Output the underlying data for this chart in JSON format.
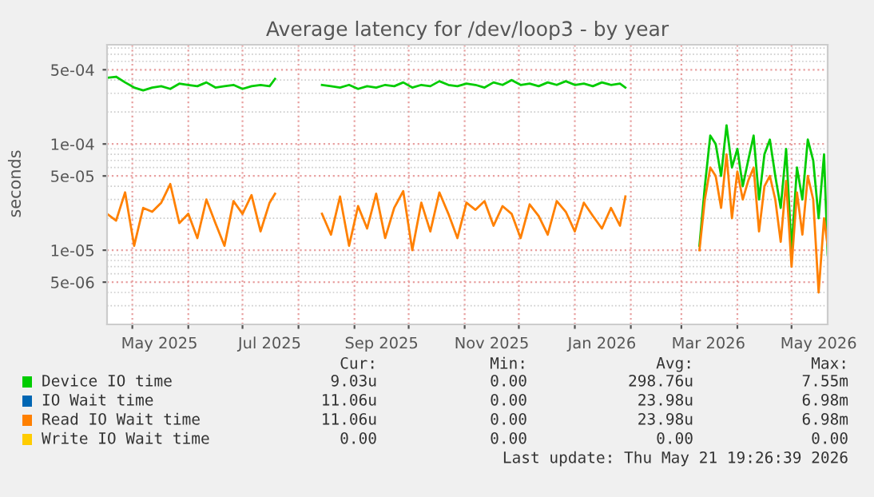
{
  "chart_data": {
    "type": "line",
    "title": "Average latency for /dev/loop3 - by year",
    "ylabel": "seconds",
    "log": "y",
    "grid": true,
    "legend": "bottom",
    "marker": "none",
    "line_style": "solid",
    "xlim": [
      "2025-04-17",
      "2026-05-21"
    ],
    "xticks": [
      {
        "value": "2025-05-01",
        "label": null
      },
      {
        "value": "2025-05-16",
        "label": "May 2025"
      },
      {
        "value": "2025-06-01",
        "label": null
      },
      {
        "value": "2025-07-01",
        "label": null
      },
      {
        "value": "2025-07-16",
        "label": "Jul 2025"
      },
      {
        "value": "2025-08-01",
        "label": null
      },
      {
        "value": "2025-09-01",
        "label": null
      },
      {
        "value": "2025-09-16",
        "label": "Sep 2025"
      },
      {
        "value": "2025-10-01",
        "label": null
      },
      {
        "value": "2025-11-01",
        "label": null
      },
      {
        "value": "2025-11-16",
        "label": "Nov 2025"
      },
      {
        "value": "2025-12-01",
        "label": null
      },
      {
        "value": "2026-01-01",
        "label": null
      },
      {
        "value": "2026-01-16",
        "label": "Jan 2026"
      },
      {
        "value": "2026-02-01",
        "label": null
      },
      {
        "value": "2026-03-01",
        "label": null
      },
      {
        "value": "2026-03-16",
        "label": "Mar 2026"
      },
      {
        "value": "2026-04-01",
        "label": null
      },
      {
        "value": "2026-05-01",
        "label": null
      },
      {
        "value": "2026-05-16",
        "label": "May 2026"
      }
    ],
    "ylim": [
      2e-06,
      0.00086
    ],
    "yticks": [
      {
        "value": 5e-06,
        "label": "5e-06"
      },
      {
        "value": 1e-05,
        "label": "1e-05"
      },
      {
        "value": 5e-05,
        "label": "5e-05"
      },
      {
        "value": 0.0001,
        "label": "1e-04"
      },
      {
        "value": 0.0005,
        "label": "5e-04"
      }
    ],
    "x": [
      "2025-04-17",
      "2025-04-22",
      "2025-04-27",
      "2025-05-02",
      "2025-05-07",
      "2025-05-12",
      "2025-05-17",
      "2025-05-22",
      "2025-05-27",
      "2025-06-01",
      "2025-06-06",
      "2025-06-11",
      "2025-06-16",
      "2025-06-21",
      "2025-06-26",
      "2025-07-01",
      "2025-07-06",
      "2025-07-11",
      "2025-07-16",
      "2025-07-19",
      "2025-08-01",
      "2025-08-14",
      "2025-08-19",
      "2025-08-24",
      "2025-08-29",
      "2025-09-03",
      "2025-09-08",
      "2025-09-13",
      "2025-09-18",
      "2025-09-23",
      "2025-09-28",
      "2025-10-03",
      "2025-10-08",
      "2025-10-13",
      "2025-10-18",
      "2025-10-23",
      "2025-10-28",
      "2025-11-02",
      "2025-11-07",
      "2025-11-12",
      "2025-11-17",
      "2025-11-22",
      "2025-11-27",
      "2025-12-02",
      "2025-12-07",
      "2025-12-12",
      "2025-12-17",
      "2025-12-22",
      "2025-12-27",
      "2026-01-01",
      "2026-01-06",
      "2026-01-11",
      "2026-01-16",
      "2026-01-21",
      "2026-01-26",
      "2026-01-29",
      "2026-02-15",
      "2026-03-11",
      "2026-03-14",
      "2026-03-17",
      "2026-03-20",
      "2026-03-23",
      "2026-03-26",
      "2026-03-29",
      "2026-04-01",
      "2026-04-04",
      "2026-04-07",
      "2026-04-10",
      "2026-04-13",
      "2026-04-16",
      "2026-04-19",
      "2026-04-22",
      "2026-04-25",
      "2026-04-28",
      "2026-05-01",
      "2026-05-04",
      "2026-05-07",
      "2026-05-10",
      "2026-05-13",
      "2026-05-16",
      "2026-05-19",
      "2026-05-21"
    ],
    "series": [
      {
        "name": "Device IO time",
        "color": "#00cc00",
        "values": [
          0.00042,
          0.00043,
          0.00038,
          0.00034,
          0.00032,
          0.00034,
          0.00035,
          0.00033,
          0.00037,
          0.00036,
          0.00035,
          0.00038,
          0.00034,
          0.00035,
          0.00036,
          0.00033,
          0.00035,
          0.00036,
          0.00035,
          0.00041,
          null,
          0.00036,
          0.00035,
          0.00034,
          0.00036,
          0.00033,
          0.00035,
          0.00034,
          0.00036,
          0.00035,
          0.00038,
          0.00034,
          0.00036,
          0.00035,
          0.00039,
          0.00036,
          0.00035,
          0.00037,
          0.00036,
          0.00034,
          0.00038,
          0.00036,
          0.0004,
          0.00036,
          0.00037,
          0.00035,
          0.00038,
          0.00036,
          0.00039,
          0.00036,
          0.00037,
          0.00035,
          0.00038,
          0.00036,
          0.00037,
          0.00034,
          null,
          1.1e-05,
          4e-05,
          0.00012,
          0.0001,
          5e-05,
          0.00015,
          6e-05,
          9e-05,
          4e-05,
          7e-05,
          0.00012,
          3e-05,
          8e-05,
          0.00011,
          5e-05,
          2.5e-05,
          9e-05,
          1e-05,
          6e-05,
          3e-05,
          0.00011,
          7e-05,
          2e-05,
          8e-05,
          9e-06
        ]
      },
      {
        "name": "IO Wait time",
        "color": "#0066b3",
        "values": [
          null,
          null,
          null,
          null,
          null,
          null,
          null,
          null,
          null,
          null,
          null,
          null,
          null,
          null,
          null,
          null,
          null,
          null,
          null,
          null,
          null,
          null,
          null,
          null,
          null,
          null,
          null,
          null,
          null,
          null,
          null,
          null,
          null,
          null,
          null,
          null,
          null,
          null,
          null,
          null,
          null,
          null,
          null,
          null,
          null,
          null,
          null,
          null,
          null,
          null,
          null,
          null,
          null,
          null,
          null,
          null,
          null,
          null,
          null,
          null,
          null,
          null,
          null,
          null,
          null,
          null,
          null,
          null,
          null,
          null,
          null,
          null,
          null,
          null,
          null,
          null,
          null,
          null,
          null,
          null,
          null,
          null
        ]
      },
      {
        "name": "Read IO Wait time",
        "color": "#ff8000",
        "values": [
          2.2e-05,
          1.9e-05,
          3.5e-05,
          1.1e-05,
          2.5e-05,
          2.3e-05,
          2.8e-05,
          4.2e-05,
          1.8e-05,
          2.2e-05,
          1.3e-05,
          3e-05,
          1.8e-05,
          1.1e-05,
          2.9e-05,
          2.2e-05,
          3.3e-05,
          1.5e-05,
          2.8e-05,
          3.4e-05,
          null,
          2.2e-05,
          1.4e-05,
          3.2e-05,
          1.1e-05,
          2.6e-05,
          1.6e-05,
          3.4e-05,
          1.3e-05,
          2.5e-05,
          3.6e-05,
          1e-05,
          2.8e-05,
          1.5e-05,
          3.5e-05,
          2.2e-05,
          1.3e-05,
          2.8e-05,
          2.4e-05,
          2.9e-05,
          1.7e-05,
          2.6e-05,
          2.2e-05,
          1.3e-05,
          2.7e-05,
          2.1e-05,
          1.4e-05,
          2.9e-05,
          2.3e-05,
          1.5e-05,
          2.8e-05,
          2.1e-05,
          1.6e-05,
          2.5e-05,
          1.7e-05,
          3.2e-05,
          null,
          1e-05,
          3e-05,
          6e-05,
          5e-05,
          2.5e-05,
          8e-05,
          2e-05,
          5.5e-05,
          3e-05,
          4.5e-05,
          6e-05,
          1.5e-05,
          4e-05,
          5e-05,
          3e-05,
          1.2e-05,
          4.5e-05,
          7e-06,
          3.5e-05,
          1.4e-05,
          5e-05,
          3e-05,
          4e-06,
          2e-05,
          1.1e-05
        ]
      },
      {
        "name": "Write IO Wait time",
        "color": "#ffcc00",
        "values": [
          null,
          null,
          null,
          null,
          null,
          null,
          null,
          null,
          null,
          null,
          null,
          null,
          null,
          null,
          null,
          null,
          null,
          null,
          null,
          null,
          null,
          null,
          null,
          null,
          null,
          null,
          null,
          null,
          null,
          null,
          null,
          null,
          null,
          null,
          null,
          null,
          null,
          null,
          null,
          null,
          null,
          null,
          null,
          null,
          null,
          null,
          null,
          null,
          null,
          null,
          null,
          null,
          null,
          null,
          null,
          null,
          null,
          null,
          null,
          null,
          null,
          null,
          null,
          null,
          null,
          null,
          null,
          null,
          null,
          null,
          null,
          null,
          null,
          null,
          null,
          null,
          null,
          null,
          null,
          null,
          null,
          null
        ]
      }
    ],
    "annotations": [
      "Cur:",
      "Min:",
      "Avg:",
      "Max:",
      "9.03u",
      "0.00",
      "298.76u",
      "7.55m",
      "11.06u",
      "0.00",
      "23.98u",
      "6.98m",
      "11.06u",
      "0.00",
      "23.98u",
      "6.98m",
      "0.00",
      "0.00",
      "0.00",
      "0.00",
      "Last update: Thu May 21 19:26:39 2026"
    ]
  }
}
